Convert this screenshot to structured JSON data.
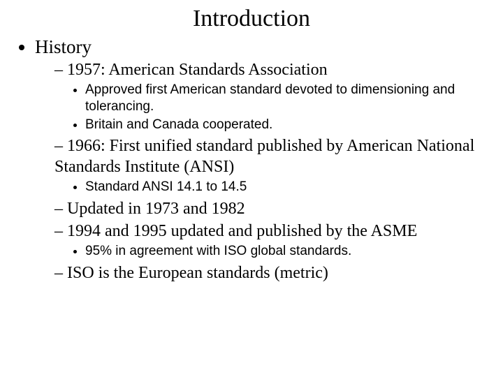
{
  "title": "Introduction",
  "title_fontsize": 34,
  "body_font": "Times New Roman",
  "sub_font": "Arial",
  "background_color": "#ffffff",
  "text_color": "#000000",
  "lvl1": {
    "item0": "History"
  },
  "lvl2": {
    "item0": "1957: American Standards Association",
    "item1": "1966: First unified standard published by American National Standards Institute (ANSI)",
    "item2": "Updated in 1973 and 1982",
    "item3": "1994 and 1995 updated and published by the ASME",
    "item4": "ISO is the European standards (metric)"
  },
  "lvl3": {
    "a0": "Approved first American standard devoted to dimensioning and tolerancing.",
    "a1": "Britain and Canada cooperated.",
    "b0": "Standard ANSI 14.1 to 14.5",
    "c0": "95% in agreement with ISO global standards."
  }
}
